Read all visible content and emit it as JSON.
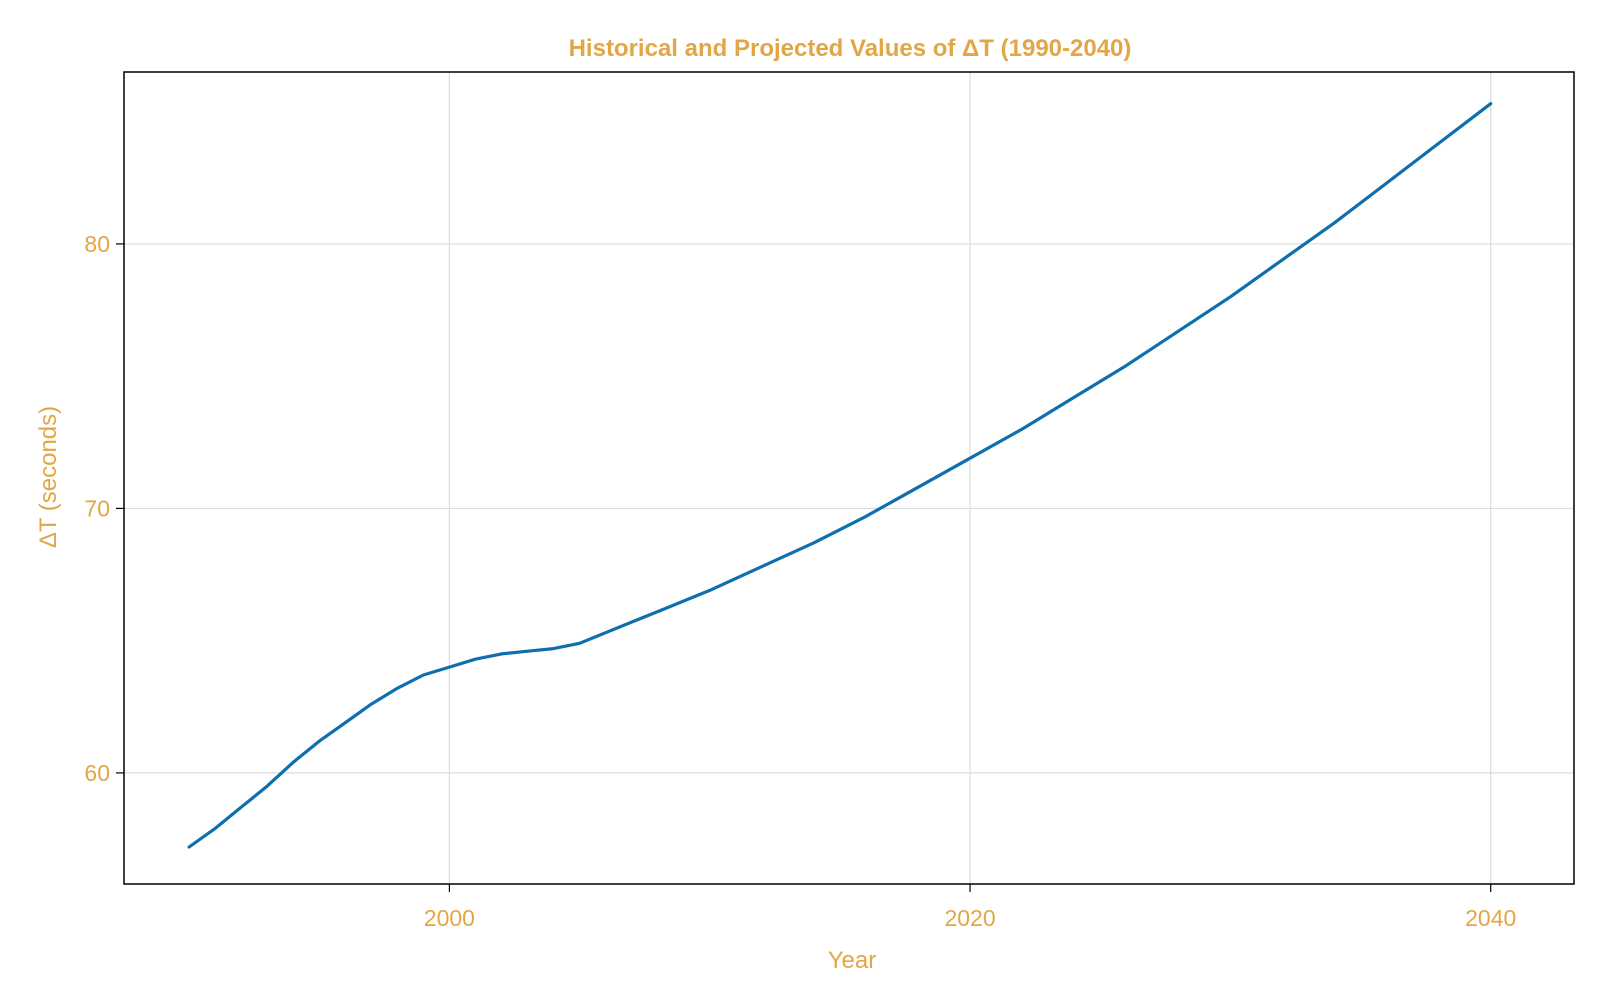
{
  "colors": {
    "text": "#E3A646",
    "line": "#0E6FAE",
    "grid": "#DCDCDC",
    "frame": "#000000",
    "background": "#FFFFFF"
  },
  "chart_data": {
    "type": "line",
    "title": "Historical and Projected Values of ΔT (1990-2040)",
    "xlabel": "Year",
    "ylabel": "ΔT (seconds)",
    "xlim": [
      1987.5,
      2043.2
    ],
    "ylim": [
      55.8,
      86.5
    ],
    "xticks": [
      2000,
      2020,
      2040
    ],
    "xtick_labels": [
      "2000",
      "2020",
      "2040"
    ],
    "yticks": [
      60,
      70,
      80
    ],
    "ytick_labels": [
      "60",
      "70",
      "80"
    ],
    "grid": true,
    "legend": "none",
    "series": [
      {
        "x": [
          1990,
          1991,
          1992,
          1993,
          1994,
          1995,
          1996,
          1997,
          1998,
          1999,
          2000,
          2001,
          2002,
          2003,
          2004,
          2005,
          2006,
          2007,
          2008,
          2009,
          2010,
          2012,
          2014,
          2016,
          2018,
          2020,
          2022,
          2024,
          2026,
          2028,
          2030,
          2032,
          2034,
          2036,
          2038,
          2040
        ],
        "y": [
          57.2,
          57.9,
          58.7,
          59.5,
          60.4,
          61.2,
          61.9,
          62.6,
          63.2,
          63.7,
          64.0,
          64.3,
          64.5,
          64.6,
          64.7,
          64.9,
          65.3,
          65.7,
          66.1,
          66.5,
          66.9,
          67.8,
          68.7,
          69.7,
          70.8,
          71.9,
          73.0,
          74.2,
          75.4,
          76.7,
          78.0,
          79.4,
          80.8,
          82.3,
          83.8,
          85.3
        ]
      }
    ]
  }
}
